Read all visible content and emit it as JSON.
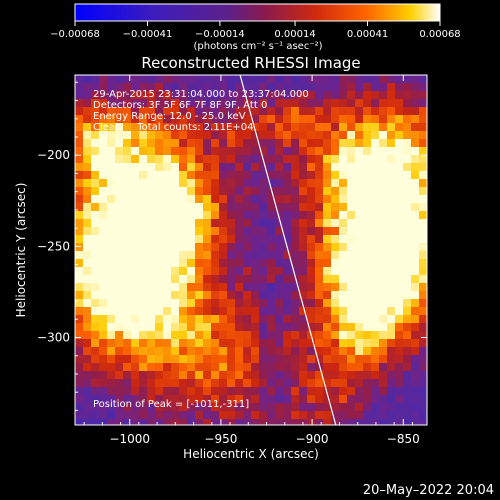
{
  "colorbar": {
    "ticks": [
      "-0.00068",
      "-0.00041",
      "-0.00014",
      "0.00014",
      "0.00041",
      "0.00068"
    ],
    "range": [
      -0.00068,
      0.00068
    ],
    "unit_label": "(photons cm⁻² s⁻¹ asec⁻²)"
  },
  "chart_data": {
    "type": "heatmap",
    "title": "Reconstructed RHESSI Image",
    "xlabel": "Heliocentric X (arcsec)",
    "ylabel": "Heliocentric Y (arcsec)",
    "xlim": [
      -1030,
      -837
    ],
    "ylim": [
      -348,
      -156
    ],
    "x_ticks": [
      -1000,
      -950,
      -900,
      -850
    ],
    "y_ticks": [
      -200,
      -250,
      -300
    ],
    "x_tick_labels": [
      "−1000",
      "−950",
      "−900",
      "−850"
    ],
    "y_tick_labels": [
      "−200",
      "−250",
      "−300"
    ],
    "colormap": "blue-purple-red-yellow-white",
    "value_range": [
      -0.00068,
      0.00068
    ],
    "limb": [
      [
        -939.5,
        -156
      ],
      [
        -887,
        -348
      ]
    ],
    "annotations": [
      "29-Apr-2015 23:31:04.000 to 23:37:04.000",
      "Detectors: 3F 5F 6F 7F 8F 9F, Att 0",
      "Energy Range: 12.0 - 25.0 keV",
      "Clean     Total counts: 2.11E+04"
    ],
    "peak_label": "Position of Peak = [-1011,-311]",
    "peak": [
      -1011,
      -311
    ]
  },
  "timestamp": "20–May–2022 20:04"
}
